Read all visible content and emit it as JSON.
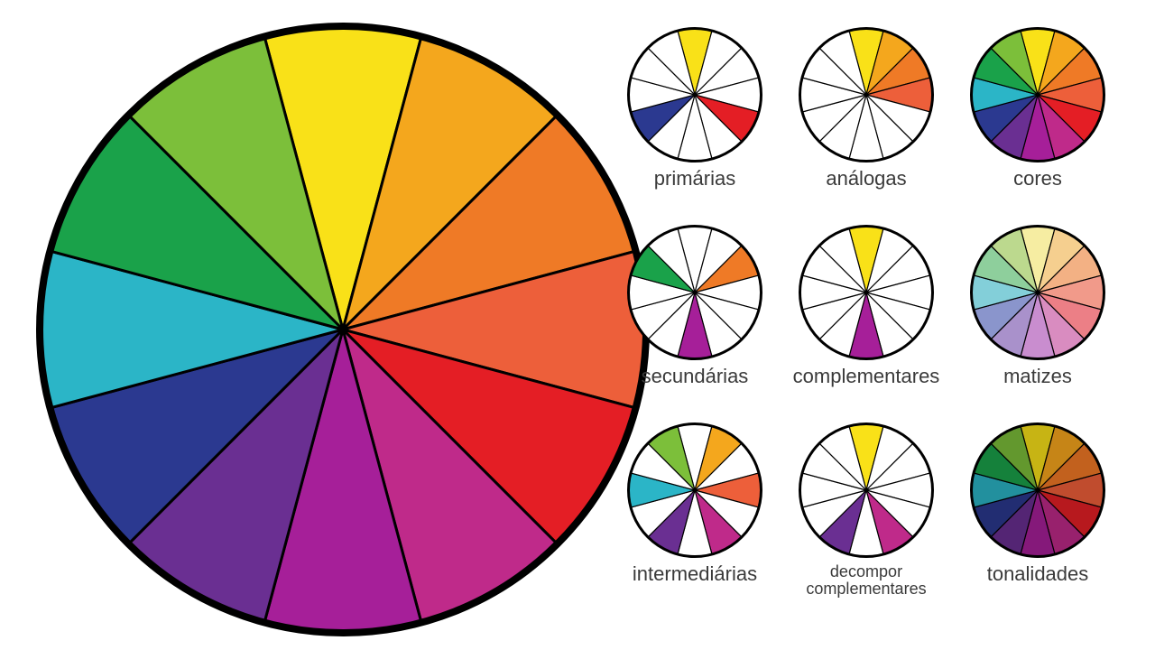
{
  "colors12": {
    "0": "#f9e118",
    "1": "#f4a71d",
    "2": "#ef7a26",
    "3": "#ed5f3a",
    "4": "#e41e25",
    "5": "#bf2a8a",
    "6": "#a61f99",
    "7": "#6a2f92",
    "8": "#2b3990",
    "9": "#2bb5c7",
    "10": "#1aa24a",
    "11": "#7cbf3a"
  },
  "matizes12": {
    "0": "#f6eda2",
    "1": "#f5cf8f",
    "2": "#f3b184",
    "3": "#f19a8a",
    "4": "#ec7f86",
    "5": "#d98cc0",
    "6": "#c98dcf",
    "7": "#a991cb",
    "8": "#8a95cc",
    "9": "#83cfd9",
    "10": "#8ecf9c",
    "11": "#bcd98e"
  },
  "tonalidades12": {
    "0": "#c7b414",
    "1": "#c68517",
    "2": "#c2611e",
    "3": "#c04c2e",
    "4": "#b7191e",
    "5": "#98216d",
    "6": "#85197a",
    "7": "#542574",
    "8": "#222d72",
    "9": "#22909e",
    "10": "#15813b",
    "11": "#63982e"
  },
  "bigWheel": {
    "outline": "#000000",
    "outlineWidth": 8,
    "segStroke": "#000000",
    "segStrokeWidth": 3,
    "size": 680
  },
  "miniWheel": {
    "outline": "#000000",
    "outlineWidth": 3,
    "segStroke": "#000000",
    "segStrokeWidth": 1.2,
    "size": 150
  },
  "blank": "#ffffff",
  "labelColor": "#3a3a3a",
  "labelFontSize": 22,
  "minis": [
    {
      "name": "primarias",
      "label": "primárias",
      "palette": "colors12",
      "filled": [
        0,
        4,
        8
      ]
    },
    {
      "name": "analogas",
      "label": "análogas",
      "palette": "colors12",
      "filled": [
        0,
        1,
        2,
        3
      ]
    },
    {
      "name": "cores",
      "label": "cores",
      "palette": "colors12",
      "filled": [
        0,
        1,
        2,
        3,
        4,
        5,
        6,
        7,
        8,
        9,
        10,
        11
      ]
    },
    {
      "name": "secundarias",
      "label": "secundárias",
      "palette": "colors12",
      "filled": [
        2,
        6,
        10
      ]
    },
    {
      "name": "complementares",
      "label": "complementares",
      "palette": "colors12",
      "filled": [
        0,
        6
      ]
    },
    {
      "name": "matizes",
      "label": "matizes",
      "palette": "matizes12",
      "filled": [
        0,
        1,
        2,
        3,
        4,
        5,
        6,
        7,
        8,
        9,
        10,
        11
      ]
    },
    {
      "name": "intermediarias",
      "label": "intermediárias",
      "palette": "colors12",
      "filled": [
        1,
        3,
        5,
        7,
        9,
        11
      ]
    },
    {
      "name": "decompor",
      "label": "decompor\\ncomplementares",
      "palette": "colors12",
      "filled": [
        0,
        5,
        7
      ],
      "small": true
    },
    {
      "name": "tonalidades",
      "label": "tonalidades",
      "palette": "tonalidades12",
      "filled": [
        0,
        1,
        2,
        3,
        4,
        5,
        6,
        7,
        8,
        9,
        10,
        11
      ]
    }
  ]
}
